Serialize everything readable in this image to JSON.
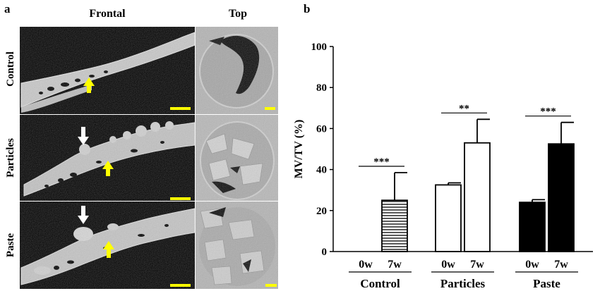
{
  "panel_a": {
    "label": "a",
    "col_frontal": "Frontal",
    "col_top": "Top",
    "rows": [
      {
        "label": "Control"
      },
      {
        "label": "Particles"
      },
      {
        "label": "Paste"
      }
    ]
  },
  "panel_b": {
    "label": "b"
  },
  "chart_data": {
    "type": "bar",
    "ylabel": "MV/TV (%)",
    "ylim": [
      0,
      100
    ],
    "yticks": [
      0,
      20,
      40,
      60,
      80,
      100
    ],
    "groups": [
      {
        "name": "Control",
        "bars": [
          {
            "label": "0w",
            "value": 0,
            "error": 0,
            "fill": "none"
          },
          {
            "label": "7w",
            "value": 25,
            "error": 13.5,
            "fill": "hatched"
          }
        ],
        "significance": "***"
      },
      {
        "name": "Particles",
        "bars": [
          {
            "label": "0w",
            "value": 32.5,
            "error": 1,
            "fill": "white"
          },
          {
            "label": "7w",
            "value": 53,
            "error": 11.5,
            "fill": "white"
          }
        ],
        "significance": "**"
      },
      {
        "name": "Paste",
        "bars": [
          {
            "label": "0w",
            "value": 24,
            "error": 1.3,
            "fill": "black"
          },
          {
            "label": "7w",
            "value": 52.5,
            "error": 10.5,
            "fill": "black"
          }
        ],
        "significance": "***"
      }
    ]
  },
  "colors": {
    "arrow_yellow": "#ffff00",
    "arrow_white": "#ffffff",
    "scale_bar": "#ffff00",
    "image_bg": "#000000",
    "top_view_bg": "#b4b4b4"
  }
}
